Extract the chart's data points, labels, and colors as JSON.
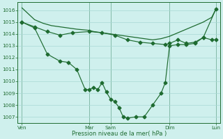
{
  "bg_color": "#cff0ed",
  "grid_color": "#a8d8d4",
  "line_color": "#1e6b30",
  "xlabel": "Pression niveau de la mer( hPa )",
  "ylim": [
    1006.5,
    1016.7
  ],
  "yticks": [
    1007,
    1008,
    1009,
    1010,
    1011,
    1012,
    1013,
    1014,
    1015,
    1016
  ],
  "xlim": [
    0,
    24
  ],
  "xtick_pos": [
    0.5,
    8.5,
    11.0,
    18.0,
    23.5
  ],
  "xtick_labels": [
    "Ven",
    "Mar",
    "Sam",
    "Dim",
    "Lun"
  ],
  "vline_x": [
    0.5,
    8.5,
    11.0,
    18.0,
    23.5
  ],
  "line_upper_x": [
    0.5,
    2,
    3,
    4,
    5,
    6,
    7,
    8.5,
    9,
    10,
    11,
    12,
    13,
    14,
    15,
    16,
    17,
    18,
    19,
    20,
    21,
    22,
    23,
    23.5
  ],
  "line_upper_y": [
    1016.2,
    1015.2,
    1014.9,
    1014.7,
    1014.6,
    1014.5,
    1014.4,
    1014.3,
    1014.2,
    1014.1,
    1014.0,
    1013.9,
    1013.8,
    1013.7,
    1013.6,
    1013.5,
    1013.6,
    1013.8,
    1014.1,
    1014.4,
    1014.7,
    1015.0,
    1015.4,
    1016.1
  ],
  "line_mid_x": [
    0.5,
    2,
    3.5,
    5,
    6.5,
    8.5,
    10,
    11.5,
    13,
    14.5,
    16,
    17.5,
    18,
    19,
    20,
    21,
    22,
    23.5
  ],
  "line_mid_y": [
    1015.0,
    1014.6,
    1014.2,
    1013.9,
    1014.1,
    1014.2,
    1014.1,
    1013.9,
    1013.5,
    1013.3,
    1013.2,
    1013.1,
    1013.2,
    1013.5,
    1013.2,
    1013.3,
    1013.7,
    1016.1
  ],
  "line_low_x": [
    0.5,
    2,
    3.5,
    5,
    6,
    7,
    8,
    8.5,
    9,
    9.5,
    10,
    10.5,
    11,
    11.5,
    12,
    12.5,
    13,
    14,
    15,
    16,
    17,
    17.5,
    18,
    19,
    20,
    21,
    22,
    23,
    23.5
  ],
  "line_low_y": [
    1015.0,
    1014.5,
    1012.3,
    1011.7,
    1011.6,
    1011.0,
    1009.3,
    1009.3,
    1009.5,
    1009.3,
    1009.9,
    1009.1,
    1008.5,
    1008.3,
    1007.8,
    1007.0,
    1006.9,
    1007.0,
    1007.0,
    1008.0,
    1009.0,
    1009.9,
    1013.0,
    1013.1,
    1013.1,
    1013.2,
    1013.7,
    1013.5,
    1013.5
  ]
}
